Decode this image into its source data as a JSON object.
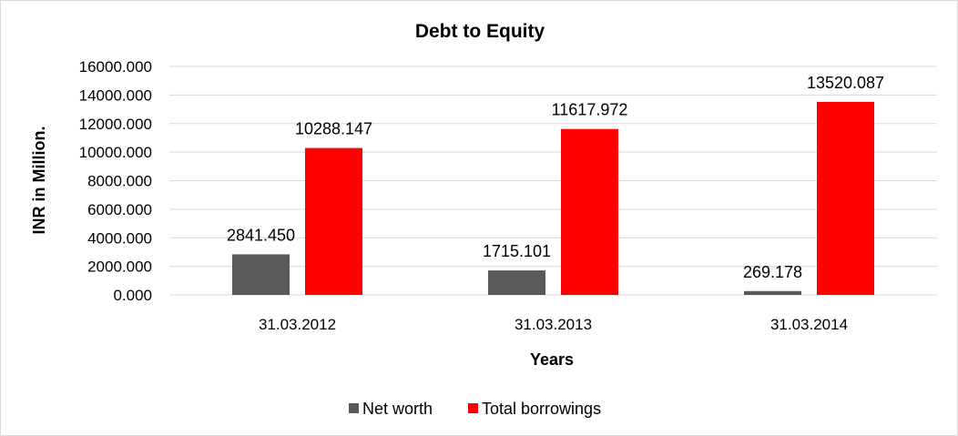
{
  "chart_data": {
    "type": "bar",
    "title": "Debt to Equity",
    "xlabel": "Years",
    "ylabel": "INR in Million.",
    "categories": [
      "31.03.2012",
      "31.03.2013",
      "31.03.2014"
    ],
    "series": [
      {
        "name": "Net worth",
        "values": [
          2841.45,
          1715.101,
          269.178
        ],
        "labels": [
          "2841.450",
          "1715.101",
          "269.178"
        ],
        "color": "#595959"
      },
      {
        "name": "Total borrowings",
        "values": [
          10288.147,
          11617.972,
          13520.087
        ],
        "labels": [
          "10288.147",
          "11617.972",
          "13520.087"
        ],
        "color": "#ff0000"
      }
    ],
    "ylim": [
      0,
      16000
    ],
    "yticks": [
      0,
      2000,
      4000,
      6000,
      8000,
      10000,
      12000,
      14000,
      16000
    ],
    "ytick_labels": [
      "0.000",
      "2000.000",
      "4000.000",
      "6000.000",
      "8000.000",
      "10000.000",
      "12000.000",
      "14000.000",
      "16000.000"
    ],
    "grid": true,
    "legend_position": "bottom"
  }
}
